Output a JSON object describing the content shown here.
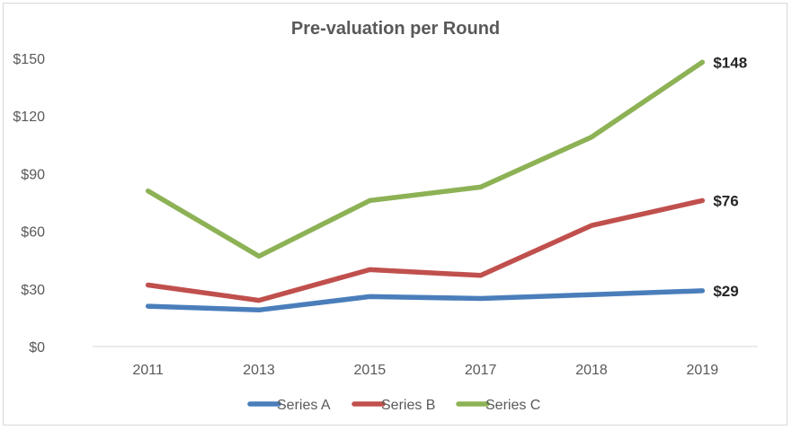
{
  "chart_data": {
    "type": "line",
    "title": "Pre-valuation per Round",
    "xlabel": "",
    "ylabel": "",
    "categories": [
      "2011",
      "2013",
      "2015",
      "2017",
      "2018",
      "2019"
    ],
    "ylim": [
      0,
      150
    ],
    "yticks": [
      0,
      30,
      60,
      90,
      120,
      150
    ],
    "ytick_labels": [
      "$0",
      "$30",
      "$60",
      "$90",
      "$120",
      "$150"
    ],
    "grid": false,
    "legend_position": "bottom",
    "series": [
      {
        "name": "Series A",
        "color": "#4a7ebb",
        "values": [
          21,
          19,
          26,
          25,
          27,
          29
        ],
        "end_label": "$29"
      },
      {
        "name": "Series B",
        "color": "#c0504d",
        "values": [
          32,
          24,
          40,
          37,
          63,
          76
        ],
        "end_label": "$76"
      },
      {
        "name": "Series C",
        "color": "#8db255",
        "values": [
          81,
          47,
          76,
          83,
          109,
          148
        ],
        "end_label": "$148"
      }
    ]
  }
}
